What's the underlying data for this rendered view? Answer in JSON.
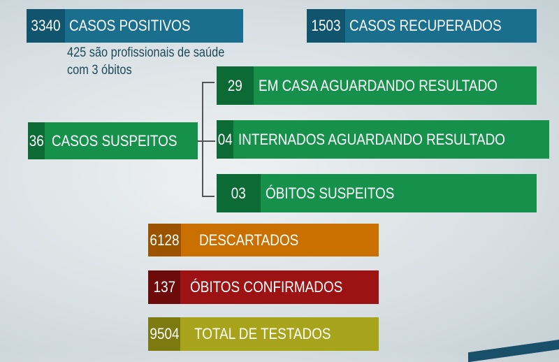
{
  "colors": {
    "blue": "#1a6f8f",
    "green": "#16914b",
    "orange": "#c97000",
    "red": "#9d1313",
    "olive": "#a7a31a"
  },
  "positivos": {
    "value": "3340",
    "label": "CASOS POSITIVOS",
    "note_line1": "425 são profissionais de saúde",
    "note_line2": "com 3 óbitos"
  },
  "recuperados": {
    "value": "1503",
    "label": "CASOS RECUPERADOS"
  },
  "suspeitos": {
    "value": "36",
    "label": "CASOS SUSPEITOS",
    "breakdown": [
      {
        "value": "29",
        "label": "EM CASA AGUARDANDO RESULTADO"
      },
      {
        "value": "04",
        "label": "INTERNADOS AGUARDANDO RESULTADO"
      },
      {
        "value": "03",
        "label": "ÓBITOS SUSPEITOS"
      }
    ]
  },
  "descartados": {
    "value": "6128",
    "label": "DESCARTADOS"
  },
  "obitos": {
    "value": "137",
    "label": "ÓBITOS CONFIRMADOS"
  },
  "testados": {
    "value": "9504",
    "label": "TOTAL DE TESTADOS"
  }
}
